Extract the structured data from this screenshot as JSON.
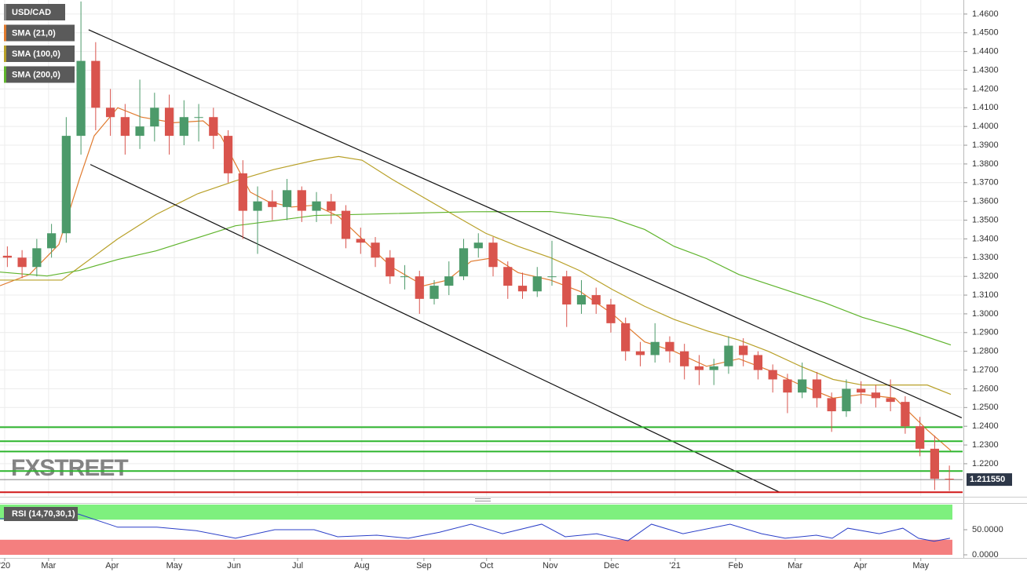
{
  "chart_data": {
    "type": "candlestick",
    "symbol": "USD/CAD",
    "watermark": "FXSTREET",
    "grid": true,
    "xlim": [
      0,
      327
    ],
    "xticks": [
      {
        "value": 1.6,
        "label": "'20"
      },
      {
        "value": 16.5,
        "label": "Mar"
      },
      {
        "value": 38.1,
        "label": "Apr"
      },
      {
        "value": 59.2,
        "label": "May"
      },
      {
        "value": 79.5,
        "label": "Jun"
      },
      {
        "value": 101.1,
        "label": "Jul"
      },
      {
        "value": 122.9,
        "label": "Aug"
      },
      {
        "value": 144,
        "label": "Sep"
      },
      {
        "value": 165.3,
        "label": "Oct"
      },
      {
        "value": 186.9,
        "label": "Nov"
      },
      {
        "value": 207.7,
        "label": "Dec"
      },
      {
        "value": 229.3,
        "label": "'21"
      },
      {
        "value": 249.9,
        "label": "Feb"
      },
      {
        "value": 270.1,
        "label": "Mar"
      },
      {
        "value": 292.3,
        "label": "Apr"
      },
      {
        "value": 312.8,
        "label": "May"
      }
    ],
    "ylim": [
      1.2028,
      1.4675
    ],
    "yticks": [
      {
        "value": 1.46,
        "label": "1.4600"
      },
      {
        "value": 1.45,
        "label": "1.4500"
      },
      {
        "value": 1.44,
        "label": "1.4400"
      },
      {
        "value": 1.43,
        "label": "1.4300"
      },
      {
        "value": 1.42,
        "label": "1.4200"
      },
      {
        "value": 1.41,
        "label": "1.4100"
      },
      {
        "value": 1.4,
        "label": "1.4000"
      },
      {
        "value": 1.39,
        "label": "1.3900"
      },
      {
        "value": 1.38,
        "label": "1.3800"
      },
      {
        "value": 1.37,
        "label": "1.3700"
      },
      {
        "value": 1.36,
        "label": "1.3600"
      },
      {
        "value": 1.35,
        "label": "1.3500"
      },
      {
        "value": 1.34,
        "label": "1.3400"
      },
      {
        "value": 1.33,
        "label": "1.3300"
      },
      {
        "value": 1.32,
        "label": "1.3200"
      },
      {
        "value": 1.31,
        "label": "1.3100"
      },
      {
        "value": 1.3,
        "label": "1.3000"
      },
      {
        "value": 1.29,
        "label": "1.2900"
      },
      {
        "value": 1.28,
        "label": "1.2800"
      },
      {
        "value": 1.27,
        "label": "1.2700"
      },
      {
        "value": 1.26,
        "label": "1.2600"
      },
      {
        "value": 1.25,
        "label": "1.2500"
      },
      {
        "value": 1.24,
        "label": "1.2400"
      },
      {
        "value": 1.23,
        "label": "1.2300"
      },
      {
        "value": 1.22,
        "label": "1.2200"
      }
    ],
    "candles": {
      "up_color": "#4c9a6a",
      "down_color": "#d9544d",
      "x": [
        2.5,
        7.5,
        12.5,
        17.5,
        22.5,
        27.5,
        32.5,
        37.5,
        42.5,
        47.5,
        52.5,
        57.5,
        62.5,
        67.5,
        72.5,
        77.5,
        82.5,
        87.5,
        92.5,
        97.5,
        102.5,
        107.5,
        112.5,
        117.5,
        122.5,
        127.5,
        132.5,
        137.5,
        142.5,
        147.5,
        152.5,
        157.5,
        162.5,
        167.5,
        172.5,
        177.5,
        182.5,
        187.5,
        192.5,
        197.5,
        202.5,
        207.5,
        212.5,
        217.5,
        222.5,
        227.5,
        232.5,
        237.5,
        242.5,
        247.5,
        252.5,
        257.5,
        262.5,
        267.5,
        272.5,
        277.5,
        282.5,
        287.5,
        292.5,
        297.5,
        302.5,
        307.5,
        312.5,
        317.5,
        322.5
      ],
      "open": [
        1.331,
        1.33,
        1.325,
        1.335,
        1.343,
        1.395,
        1.435,
        1.41,
        1.405,
        1.395,
        1.4,
        1.41,
        1.395,
        1.405,
        1.405,
        1.395,
        1.375,
        1.355,
        1.36,
        1.357,
        1.366,
        1.355,
        1.36,
        1.355,
        1.34,
        1.338,
        1.33,
        1.32,
        1.32,
        1.308,
        1.315,
        1.32,
        1.335,
        1.338,
        1.325,
        1.315,
        1.312,
        1.32,
        1.32,
        1.305,
        1.31,
        1.305,
        1.295,
        1.28,
        1.278,
        1.285,
        1.28,
        1.272,
        1.27,
        1.272,
        1.283,
        1.278,
        1.27,
        1.265,
        1.258,
        1.265,
        1.255,
        1.248,
        1.26,
        1.258,
        1.255,
        1.253,
        1.24,
        1.228,
        1.212
      ],
      "high": [
        1.336,
        1.334,
        1.34,
        1.348,
        1.405,
        1.4667,
        1.445,
        1.42,
        1.412,
        1.425,
        1.418,
        1.417,
        1.414,
        1.412,
        1.41,
        1.398,
        1.382,
        1.368,
        1.366,
        1.372,
        1.368,
        1.365,
        1.364,
        1.358,
        1.346,
        1.341,
        1.334,
        1.326,
        1.323,
        1.318,
        1.328,
        1.34,
        1.343,
        1.341,
        1.328,
        1.322,
        1.325,
        1.339,
        1.323,
        1.318,
        1.314,
        1.308,
        1.298,
        1.285,
        1.295,
        1.288,
        1.284,
        1.278,
        1.276,
        1.288,
        1.287,
        1.28,
        1.273,
        1.268,
        1.274,
        1.269,
        1.258,
        1.265,
        1.264,
        1.262,
        1.265,
        1.256,
        1.245,
        1.235,
        1.219
      ],
      "low": [
        1.325,
        1.319,
        1.32,
        1.33,
        1.338,
        1.385,
        1.398,
        1.395,
        1.385,
        1.388,
        1.392,
        1.385,
        1.39,
        1.392,
        1.388,
        1.37,
        1.34,
        1.332,
        1.35,
        1.35,
        1.349,
        1.349,
        1.348,
        1.335,
        1.332,
        1.325,
        1.316,
        1.313,
        1.3,
        1.305,
        1.31,
        1.318,
        1.33,
        1.32,
        1.308,
        1.308,
        1.309,
        1.315,
        1.293,
        1.3,
        1.3,
        1.29,
        1.275,
        1.272,
        1.274,
        1.274,
        1.265,
        1.262,
        1.262,
        1.268,
        1.272,
        1.265,
        1.258,
        1.247,
        1.255,
        1.25,
        1.237,
        1.245,
        1.252,
        1.25,
        1.248,
        1.236,
        1.224,
        1.206,
        1.2055
      ],
      "close": [
        1.33,
        1.325,
        1.335,
        1.343,
        1.395,
        1.435,
        1.41,
        1.405,
        1.395,
        1.4,
        1.41,
        1.395,
        1.405,
        1.405,
        1.395,
        1.375,
        1.355,
        1.36,
        1.357,
        1.366,
        1.355,
        1.36,
        1.355,
        1.34,
        1.338,
        1.33,
        1.32,
        1.32,
        1.308,
        1.315,
        1.32,
        1.335,
        1.338,
        1.325,
        1.315,
        1.312,
        1.32,
        1.32,
        1.305,
        1.31,
        1.305,
        1.295,
        1.28,
        1.278,
        1.285,
        1.28,
        1.272,
        1.27,
        1.272,
        1.283,
        1.278,
        1.27,
        1.265,
        1.258,
        1.265,
        1.255,
        1.248,
        1.26,
        1.258,
        1.255,
        1.253,
        1.24,
        1.228,
        1.212,
        1.21155
      ]
    },
    "series": [
      {
        "name": "SMA (21,0)",
        "color": "#e07a2e",
        "x": [
          0,
          10,
          20,
          27,
          32,
          40,
          48,
          59,
          69,
          75,
          80,
          85,
          91,
          99,
          107,
          115,
          123,
          133,
          144,
          152,
          160,
          168,
          176,
          187,
          197,
          208,
          219,
          229,
          240,
          251,
          261,
          272,
          283,
          293,
          304,
          315,
          323
        ],
        "values": [
          1.315,
          1.321,
          1.337,
          1.372,
          1.395,
          1.41,
          1.405,
          1.402,
          1.403,
          1.395,
          1.38,
          1.365,
          1.36,
          1.357,
          1.358,
          1.352,
          1.34,
          1.325,
          1.315,
          1.318,
          1.328,
          1.33,
          1.322,
          1.318,
          1.312,
          1.3,
          1.285,
          1.28,
          1.272,
          1.276,
          1.27,
          1.262,
          1.255,
          1.257,
          1.255,
          1.238,
          1.227
        ]
      },
      {
        "name": "SMA (100,0)",
        "color": "#b8a028",
        "x": [
          0,
          21,
          27,
          40,
          53,
          67,
          80,
          93,
          107,
          115,
          123,
          133,
          144,
          155,
          165,
          176,
          187,
          197,
          208,
          219,
          229,
          240,
          251,
          261,
          272,
          283,
          293,
          304,
          315,
          323
        ],
        "values": [
          1.318,
          1.318,
          1.325,
          1.34,
          1.353,
          1.364,
          1.371,
          1.377,
          1.382,
          1.384,
          1.382,
          1.372,
          1.362,
          1.352,
          1.343,
          1.336,
          1.33,
          1.323,
          1.313,
          1.304,
          1.297,
          1.291,
          1.286,
          1.28,
          1.272,
          1.265,
          1.262,
          1.262,
          1.262,
          1.257
        ]
      },
      {
        "name": "SMA (200,0)",
        "color": "#5fb42c",
        "x": [
          0,
          16,
          27,
          40,
          53,
          80,
          107,
          133,
          160,
          187,
          208,
          219,
          229,
          240,
          251,
          267,
          280,
          293,
          307,
          323
        ],
        "values": [
          1.3223,
          1.3202,
          1.3232,
          1.329,
          1.3336,
          1.347,
          1.3525,
          1.3535,
          1.3545,
          1.3546,
          1.351,
          1.345,
          1.336,
          1.3295,
          1.321,
          1.3127,
          1.306,
          1.2981,
          1.2918,
          1.2834
        ]
      }
    ],
    "trendlines": [
      {
        "color": "#111111",
        "x": [
          30.1,
          326.7
        ],
        "values": [
          1.4516,
          1.2445
        ]
      },
      {
        "color": "#111111",
        "x": [
          30.7,
          264.8
        ],
        "values": [
          1.3797,
          1.2048
        ]
      }
    ],
    "levels": [
      {
        "value": 1.2395,
        "color": "#2db52d"
      },
      {
        "value": 1.232,
        "color": "#2db52d"
      },
      {
        "value": 1.2265,
        "color": "#2db52d"
      },
      {
        "value": 1.2161,
        "color": "#2db52d"
      },
      {
        "value": 1.2048,
        "color": "#d01818"
      }
    ],
    "last_price": {
      "value": 1.21155,
      "label": "1.211550"
    },
    "rsi": {
      "name": "RSI (14,70,30,1)",
      "color": "#2b3fc8",
      "ylim": [
        0,
        100
      ],
      "yticks": [
        {
          "value": 50,
          "label": "50.0000"
        },
        {
          "value": 0,
          "label": "0.0000"
        }
      ],
      "overbought": 70,
      "oversold": 30,
      "overbought_color": "#7ef07e",
      "oversold_color": "#f47f7f",
      "x": [
        0,
        16,
        26.7,
        40,
        53.3,
        66.7,
        80,
        93.3,
        106.7,
        114.7,
        128,
        138.7,
        149.3,
        160,
        170.7,
        184,
        192,
        202.7,
        213.3,
        221.3,
        232,
        248,
        258.7,
        266.7,
        277.3,
        282.7,
        288,
        298.7,
        306.7,
        312,
        317.3,
        322.7
      ],
      "values": [
        72,
        70,
        81,
        55,
        55,
        48,
        33,
        50,
        50,
        36,
        39,
        33,
        45,
        61,
        42,
        61,
        36,
        42,
        28,
        61,
        42,
        61,
        42,
        33,
        39,
        33,
        53,
        42,
        53,
        33,
        27,
        33
      ]
    }
  }
}
